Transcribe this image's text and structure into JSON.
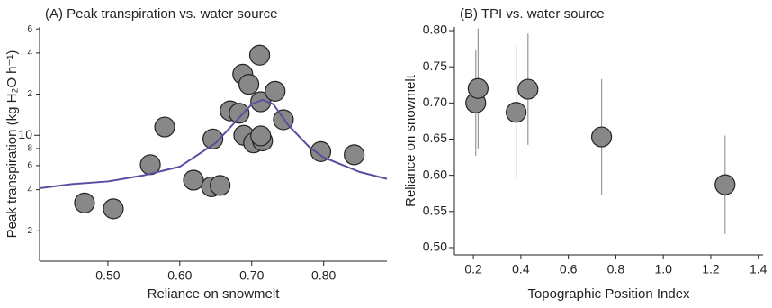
{
  "chart_data": [
    {
      "type": "scatter",
      "title": "(A) Peak transpiration vs. water source",
      "x_label": "Reliance on snowmelt",
      "y_label": "Peak transpiration (kg H₂O h⁻¹)",
      "log_y": true,
      "xlim": [
        0.405,
        0.888
      ],
      "ylim": [
        1.2,
        62
      ],
      "xticks": [
        {
          "value": 0.5,
          "label": "0.50"
        },
        {
          "value": 0.6,
          "label": "0.60"
        },
        {
          "value": 0.7,
          "label": "0.70"
        },
        {
          "value": 0.8,
          "label": "0.80"
        }
      ],
      "yticks": [
        2,
        4,
        6,
        8,
        10,
        {
          "value": 20,
          "label": "2"
        },
        {
          "value": 40,
          "label": "4"
        },
        {
          "value": 60,
          "label": "6"
        }
      ],
      "series": [
        {
          "type": "scatter",
          "color": "#888888",
          "x": [
            0.4675,
            0.5075,
            0.559,
            0.579,
            0.619,
            0.644,
            0.656,
            0.646,
            0.67,
            0.6825,
            0.6875,
            0.696,
            0.689,
            0.7025,
            0.715,
            0.7125,
            0.711,
            0.7125,
            0.7325,
            0.744,
            0.796,
            0.8425
          ],
          "values": [
            3.2,
            2.9,
            6.1,
            11.5,
            4.7,
            4.2,
            4.3,
            9.4,
            15.1,
            14.5,
            28,
            23.6,
            10,
            8.8,
            9.1,
            9.9,
            38.6,
            17.6,
            21,
            13,
            7.6,
            7.2
          ]
        },
        {
          "type": "line",
          "color": "#5a4fa0",
          "x": [
            0.405,
            0.45,
            0.5,
            0.55,
            0.6,
            0.65,
            0.68,
            0.7,
            0.715,
            0.73,
            0.75,
            0.78,
            0.8,
            0.85,
            0.888
          ],
          "values": [
            4.1,
            4.4,
            4.6,
            5.1,
            5.9,
            8.8,
            13,
            16.9,
            18.2,
            16.9,
            12,
            8.2,
            6.9,
            5.4,
            4.8
          ]
        }
      ]
    },
    {
      "type": "scatter",
      "title": "(B) TPI vs. water source",
      "x_label": "Topographic Position Index",
      "y_label": "Reliance on snowmelt",
      "xlim": [
        0.12,
        1.42
      ],
      "ylim": [
        0.49,
        0.805
      ],
      "xticks": [
        0.2,
        0.4,
        0.6,
        0.8,
        {
          "value": 1,
          "label": "1.0"
        },
        1.2,
        1.4
      ],
      "yticks": [
        {
          "value": 0.5,
          "label": "0.50"
        },
        0.55,
        {
          "value": 0.6,
          "label": "0.60"
        },
        0.65,
        {
          "value": 0.7,
          "label": "0.70"
        },
        0.75,
        {
          "value": 0.8,
          "label": "0.80"
        }
      ],
      "series": [
        {
          "type": "scatter",
          "color": "#888888",
          "error_color": "#999999",
          "x": [
            0.21,
            0.22,
            0.38,
            0.43,
            0.74,
            1.26
          ],
          "values": [
            0.7,
            0.72,
            0.687,
            0.719,
            0.653,
            0.587
          ],
          "errors": [
            0.073,
            0.083,
            0.093,
            0.077,
            0.08,
            0.068
          ]
        }
      ]
    }
  ]
}
